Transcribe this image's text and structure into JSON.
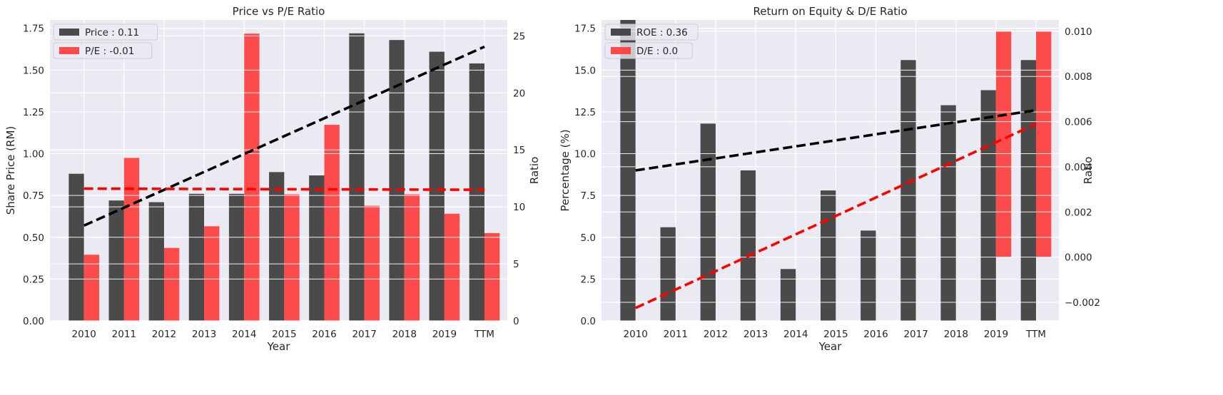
{
  "chart_data": [
    {
      "type": "bar",
      "title": "Price vs P/E Ratio",
      "xlabel": "Year",
      "ylabel": "Share Price (RM)",
      "ylabel_right": "Ratio",
      "categories": [
        "2010",
        "2011",
        "2012",
        "2013",
        "2014",
        "2015",
        "2016",
        "2017",
        "2018",
        "2019",
        "TTM"
      ],
      "ylim": [
        0,
        1.8
      ],
      "ylim_right": [
        0,
        26.4
      ],
      "yticks": [
        "0.00",
        "0.25",
        "0.50",
        "0.75",
        "1.00",
        "1.25",
        "1.50",
        "1.75"
      ],
      "yticks_right": [
        "0",
        "5",
        "10",
        "15",
        "20",
        "25"
      ],
      "grid": true,
      "legend_position": "top-left",
      "series": [
        {
          "name": "Price : 0.11",
          "axis": "left",
          "color": "#333333",
          "values": [
            0.88,
            0.72,
            0.71,
            0.76,
            0.76,
            0.89,
            0.87,
            1.72,
            1.68,
            1.61,
            1.54
          ]
        },
        {
          "name": "P/E : -0.01",
          "axis": "right",
          "color": "#ff3333",
          "values": [
            5.8,
            14.3,
            6.4,
            8.3,
            25.2,
            11.1,
            17.2,
            10.1,
            11.1,
            9.4,
            7.7
          ]
        }
      ],
      "trendlines": [
        {
          "axis": "left",
          "color": "#000000",
          "start": 0.57,
          "end": 1.64
        },
        {
          "axis": "right",
          "color": "#ff0000",
          "start": 11.6,
          "end": 11.5
        }
      ]
    },
    {
      "type": "bar",
      "title": "Return on Equity & D/E Ratio",
      "xlabel": "Year",
      "ylabel": "Percentage (%)",
      "ylabel_right": "Ratio",
      "categories": [
        "2010",
        "2011",
        "2012",
        "2013",
        "2014",
        "2015",
        "2016",
        "2017",
        "2018",
        "2019",
        "TTM"
      ],
      "ylim": [
        0,
        18.0
      ],
      "ylim_right": [
        -0.00282,
        0.0105
      ],
      "yticks": [
        "0.0",
        "2.5",
        "5.0",
        "7.5",
        "10.0",
        "12.5",
        "15.0",
        "17.5"
      ],
      "yticks_right": [
        "−0.002",
        "0.000",
        "0.002",
        "0.004",
        "0.006",
        "0.008",
        "0.010"
      ],
      "grid": true,
      "legend_position": "top-left",
      "series": [
        {
          "name": "ROE : 0.36",
          "axis": "left",
          "color": "#333333",
          "values": [
            18.0,
            5.6,
            11.8,
            9.0,
            3.1,
            7.8,
            5.4,
            15.6,
            12.9,
            13.8,
            15.6
          ]
        },
        {
          "name": "D/E : 0.0",
          "axis": "right",
          "color": "#ff3333",
          "values": [
            0,
            0,
            0,
            0,
            0,
            0,
            0,
            0,
            0,
            0.01,
            0.01
          ]
        }
      ],
      "trendlines": [
        {
          "axis": "left",
          "color": "#000000",
          "start": 9.0,
          "end": 12.6
        },
        {
          "axis": "right",
          "color": "#ff0000",
          "start": -0.00225,
          "end": 0.0059
        }
      ]
    }
  ]
}
